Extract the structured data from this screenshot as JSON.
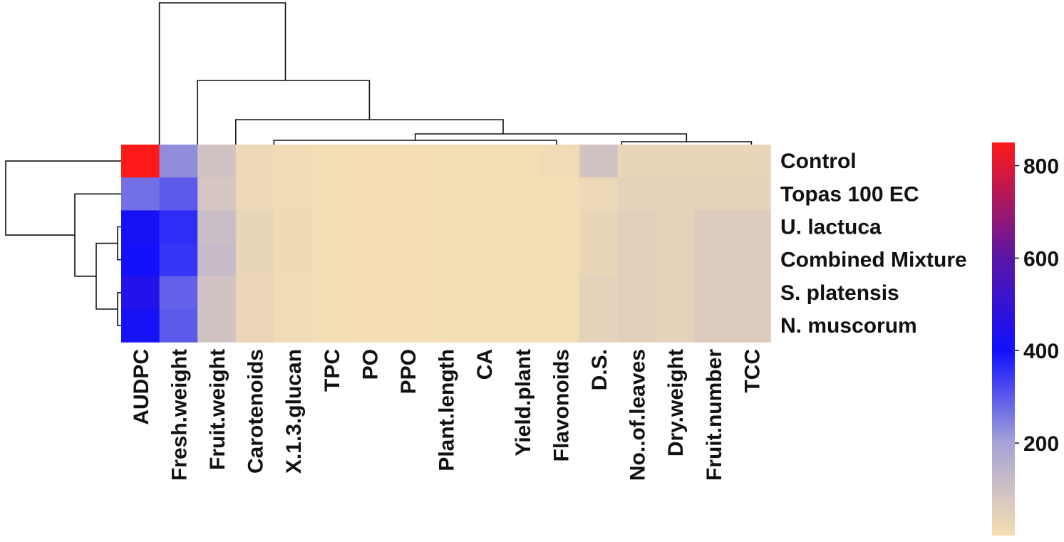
{
  "chart_data": {
    "type": "heatmap",
    "title": "",
    "rows": [
      "Control",
      "Topas 100 EC",
      "U. lactuca",
      "Combined Mixture",
      "S. platensis",
      "N. muscorum"
    ],
    "columns": [
      "AUDPC",
      "Fresh.weight",
      "Fruit.weight",
      "Carotenoids",
      "X.1.3.glucan",
      "TPC",
      "PO",
      "PPO",
      "Plant.length",
      "CA",
      "Yield.plant",
      "Flavonoids",
      "D.S.",
      "No..of.leaves",
      "Dry.weight",
      "Fruit.number",
      "TCC"
    ],
    "values": [
      [
        850,
        230,
        90,
        20,
        10,
        5,
        3,
        3,
        5,
        5,
        5,
        10,
        90,
        30,
        30,
        30,
        30
      ],
      [
        270,
        300,
        80,
        20,
        10,
        5,
        3,
        3,
        5,
        5,
        5,
        5,
        20,
        40,
        40,
        40,
        40
      ],
      [
        420,
        360,
        110,
        30,
        15,
        5,
        3,
        3,
        5,
        5,
        5,
        5,
        30,
        50,
        40,
        60,
        60
      ],
      [
        410,
        350,
        120,
        30,
        15,
        5,
        3,
        3,
        5,
        5,
        5,
        5,
        30,
        50,
        40,
        60,
        60
      ],
      [
        450,
        290,
        90,
        25,
        10,
        5,
        3,
        3,
        5,
        5,
        5,
        5,
        40,
        50,
        40,
        60,
        60
      ],
      [
        420,
        300,
        90,
        25,
        10,
        5,
        3,
        3,
        5,
        5,
        5,
        5,
        40,
        50,
        40,
        60,
        60
      ]
    ],
    "color_scale": {
      "min": 0,
      "max": 850,
      "stops": [
        {
          "value": 0,
          "color": "#f5deb3"
        },
        {
          "value": 200,
          "color": "#a6a3d6"
        },
        {
          "value": 400,
          "color": "#1010ff"
        },
        {
          "value": 600,
          "color": "#5a16a6"
        },
        {
          "value": 850,
          "color": "#ff1a1a"
        }
      ],
      "ticks": [
        200,
        400,
        600,
        800
      ]
    },
    "column_dendrogram": true,
    "row_dendrogram": true
  }
}
